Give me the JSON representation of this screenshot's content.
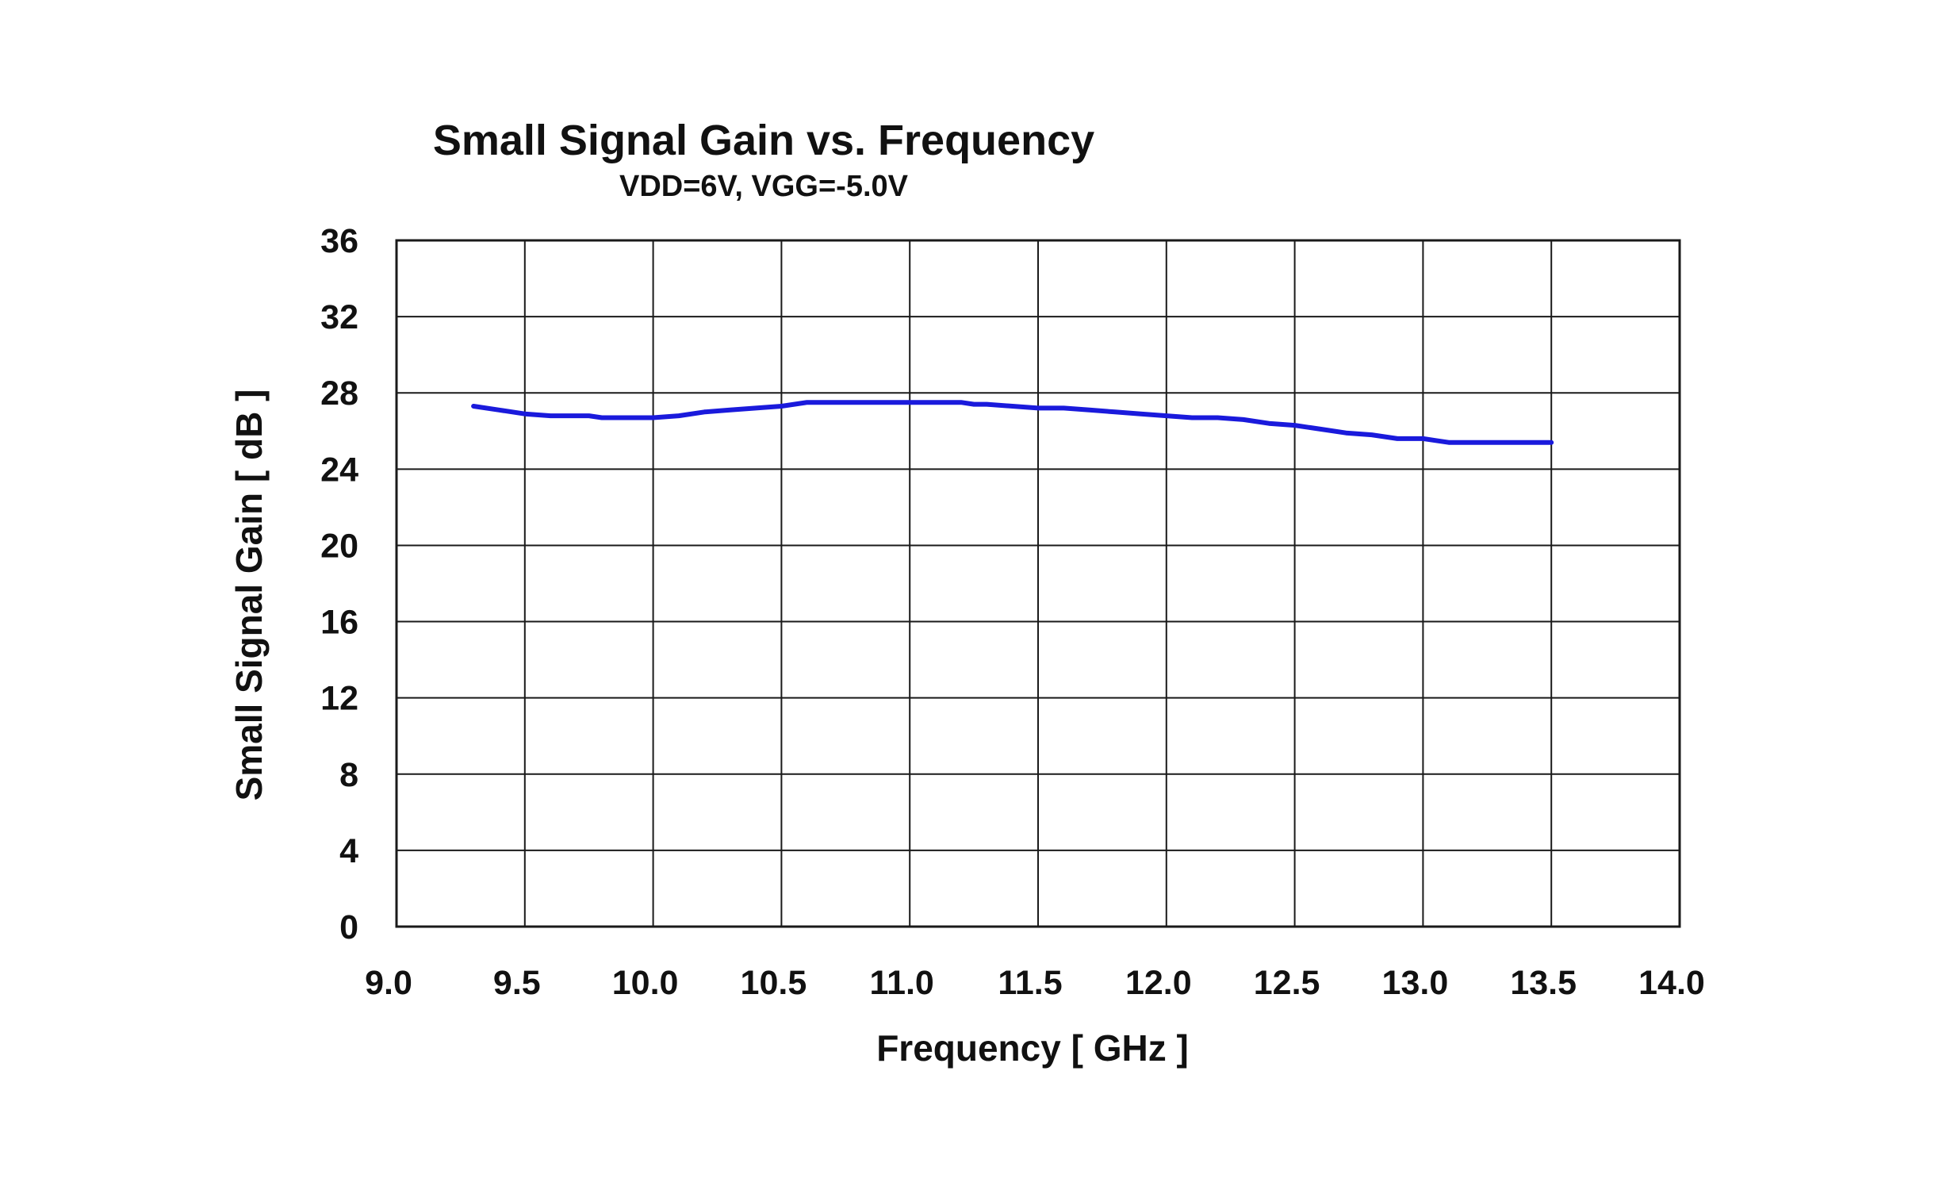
{
  "chart_data": {
    "type": "line",
    "title": "Small Signal Gain vs. Frequency",
    "subtitle": "VDD=6V, VGG=-5.0V",
    "xlabel": "Frequency [ GHz ]",
    "ylabel": "Small Signal Gain [ dB ]",
    "xlim": [
      9.0,
      14.0
    ],
    "ylim": [
      0,
      36
    ],
    "x_ticks": [
      "9.0",
      "9.5",
      "10.0",
      "10.5",
      "11.0",
      "11.5",
      "12.0",
      "12.5",
      "13.0",
      "13.5",
      "14.0"
    ],
    "y_ticks": [
      "0",
      "4",
      "8",
      "12",
      "16",
      "20",
      "24",
      "28",
      "32",
      "36"
    ],
    "grid": true,
    "series": [
      {
        "color": "#1a1adc",
        "x": [
          9.3,
          9.4,
          9.5,
          9.6,
          9.7,
          9.75,
          9.8,
          9.9,
          10.0,
          10.1,
          10.2,
          10.3,
          10.4,
          10.5,
          10.6,
          10.7,
          10.8,
          10.9,
          11.0,
          11.1,
          11.2,
          11.25,
          11.3,
          11.4,
          11.5,
          11.6,
          11.7,
          11.8,
          11.9,
          12.0,
          12.1,
          12.2,
          12.3,
          12.4,
          12.5,
          12.6,
          12.7,
          12.8,
          12.9,
          13.0,
          13.05,
          13.1,
          13.2,
          13.3,
          13.4,
          13.5
        ],
        "values": [
          27.3,
          27.1,
          26.9,
          26.8,
          26.8,
          26.8,
          26.7,
          26.7,
          26.7,
          26.8,
          27.0,
          27.1,
          27.2,
          27.3,
          27.5,
          27.5,
          27.5,
          27.5,
          27.5,
          27.5,
          27.5,
          27.4,
          27.4,
          27.3,
          27.2,
          27.2,
          27.1,
          27.0,
          26.9,
          26.8,
          26.7,
          26.7,
          26.6,
          26.4,
          26.3,
          26.1,
          25.9,
          25.8,
          25.6,
          25.6,
          25.5,
          25.4,
          25.4,
          25.4,
          25.4,
          25.4
        ]
      }
    ]
  }
}
